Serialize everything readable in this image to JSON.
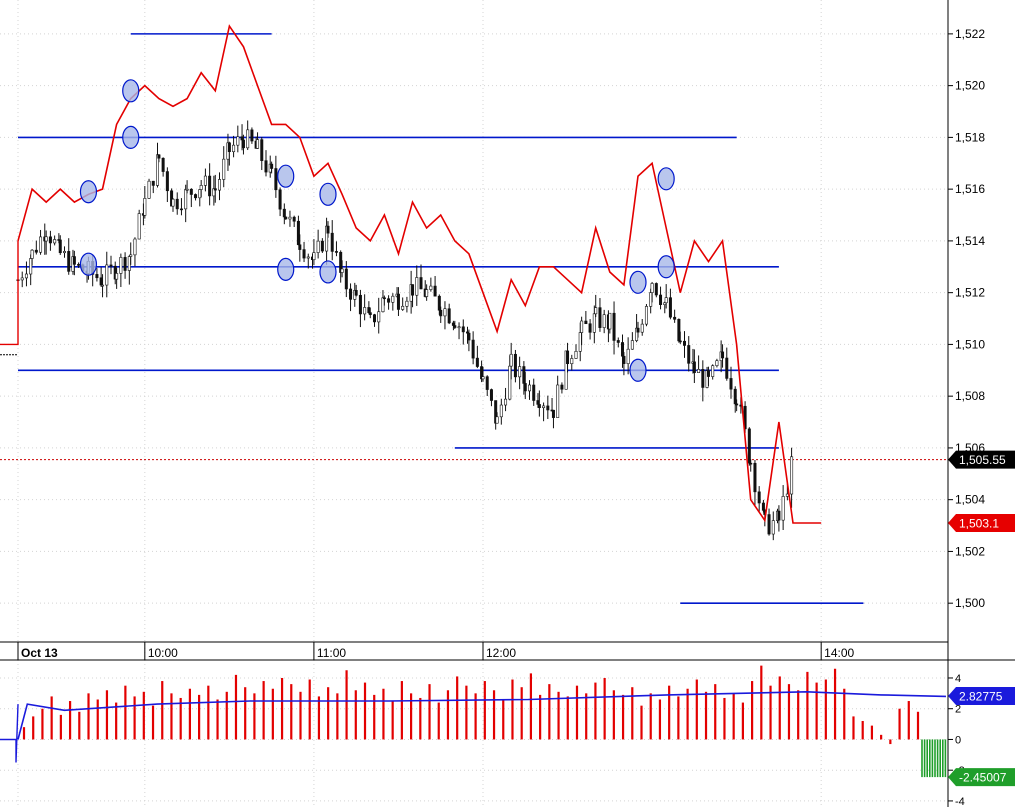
{
  "chart_data": [
    {
      "type": "candlestick",
      "panel": "price",
      "title": "",
      "xlabel": "",
      "ylabel": "",
      "ylim": [
        1498.5,
        1523
      ],
      "y_ticks": [
        1500,
        1502,
        1504,
        1506,
        1508,
        1510,
        1512,
        1514,
        1516,
        1518,
        1520,
        1522
      ],
      "y_tick_labels": [
        "1,500",
        "1,502",
        "1,504",
        "1,506",
        "1,508",
        "1,510",
        "1,512",
        "1,514",
        "1,516",
        "1,518",
        "1,520",
        "1,522"
      ],
      "x_range": [
        "09:15",
        "14:45"
      ],
      "x_ticks": [
        {
          "time": "09:15",
          "label": "Oct 13",
          "bold": true
        },
        {
          "time": "10:00",
          "label": "10:00"
        },
        {
          "time": "11:00",
          "label": "11:00"
        },
        {
          "time": "12:00",
          "label": "12:00"
        },
        {
          "time": "14:00",
          "label": "14:00"
        }
      ],
      "grid": true,
      "candle_path": [
        [
          "09:15",
          1512.5
        ],
        [
          "09:20",
          1513.5
        ],
        [
          "09:25",
          1514.5
        ],
        [
          "09:30",
          1513.5
        ],
        [
          "09:35",
          1513.0
        ],
        [
          "09:40",
          1512.8
        ],
        [
          "09:45",
          1512.5
        ],
        [
          "09:50",
          1513.0
        ],
        [
          "09:55",
          1513.5
        ],
        [
          "10:00",
          1515.5
        ],
        [
          "10:05",
          1517.2
        ],
        [
          "10:10",
          1515.5
        ],
        [
          "10:15",
          1515.8
        ],
        [
          "10:20",
          1516.2
        ],
        [
          "10:25",
          1516.0
        ],
        [
          "10:30",
          1517.5
        ],
        [
          "10:35",
          1518.0
        ],
        [
          "10:40",
          1517.5
        ],
        [
          "10:45",
          1516.5
        ],
        [
          "10:50",
          1515.0
        ],
        [
          "10:55",
          1514.0
        ],
        [
          "11:00",
          1513.2
        ],
        [
          "11:05",
          1514.5
        ],
        [
          "11:10",
          1512.5
        ],
        [
          "11:15",
          1511.8
        ],
        [
          "11:20",
          1510.8
        ],
        [
          "11:25",
          1511.8
        ],
        [
          "11:30",
          1511.8
        ],
        [
          "11:35",
          1512.2
        ],
        [
          "11:40",
          1512.0
        ],
        [
          "11:45",
          1511.5
        ],
        [
          "11:50",
          1511.0
        ],
        [
          "11:55",
          1510.2
        ],
        [
          "12:00",
          1508.5
        ],
        [
          "12:05",
          1507.0
        ],
        [
          "12:10",
          1509.2
        ],
        [
          "12:15",
          1508.5
        ],
        [
          "12:20",
          1508.0
        ],
        [
          "12:25",
          1507.5
        ],
        [
          "12:30",
          1509.5
        ],
        [
          "12:35",
          1510.5
        ],
        [
          "12:40",
          1511.0
        ],
        [
          "12:45",
          1510.8
        ],
        [
          "12:50",
          1509.2
        ],
        [
          "12:55",
          1510.5
        ],
        [
          "13:00",
          1512.5
        ],
        [
          "13:05",
          1511.5
        ],
        [
          "13:10",
          1510.0
        ],
        [
          "13:15",
          1509.0
        ],
        [
          "13:20",
          1508.5
        ],
        [
          "13:25",
          1509.5
        ],
        [
          "13:30",
          1508.0
        ],
        [
          "13:35",
          1505.5
        ],
        [
          "13:40",
          1503.0
        ],
        [
          "13:45",
          1503.2
        ],
        [
          "13:50",
          1505.5
        ]
      ],
      "red_line": [
        [
          "09:15",
          1514.0
        ],
        [
          "09:20",
          1516.0
        ],
        [
          "09:25",
          1515.5
        ],
        [
          "09:30",
          1516.0
        ],
        [
          "09:35",
          1515.5
        ],
        [
          "09:40",
          1515.8
        ],
        [
          "09:45",
          1516.0
        ],
        [
          "09:50",
          1518.5
        ],
        [
          "09:55",
          1519.5
        ],
        [
          "10:00",
          1520.0
        ],
        [
          "10:05",
          1519.5
        ],
        [
          "10:10",
          1519.2
        ],
        [
          "10:15",
          1519.5
        ],
        [
          "10:20",
          1520.5
        ],
        [
          "10:25",
          1519.8
        ],
        [
          "10:30",
          1522.3
        ],
        [
          "10:35",
          1521.5
        ],
        [
          "10:40",
          1520.0
        ],
        [
          "10:45",
          1518.5
        ],
        [
          "10:50",
          1518.5
        ],
        [
          "10:55",
          1518.0
        ],
        [
          "11:00",
          1516.5
        ],
        [
          "11:05",
          1517.0
        ],
        [
          "11:10",
          1515.8
        ],
        [
          "11:15",
          1514.5
        ],
        [
          "11:20",
          1514.0
        ],
        [
          "11:25",
          1515.0
        ],
        [
          "11:30",
          1513.5
        ],
        [
          "11:35",
          1515.5
        ],
        [
          "11:40",
          1514.5
        ],
        [
          "11:45",
          1515.0
        ],
        [
          "11:50",
          1514.0
        ],
        [
          "11:55",
          1513.5
        ],
        [
          "12:00",
          1512.0
        ],
        [
          "12:05",
          1510.5
        ],
        [
          "12:10",
          1512.5
        ],
        [
          "12:15",
          1511.5
        ],
        [
          "12:20",
          1513.0
        ],
        [
          "12:25",
          1513.0
        ],
        [
          "12:30",
          1512.5
        ],
        [
          "12:35",
          1512.0
        ],
        [
          "12:40",
          1514.5
        ],
        [
          "12:45",
          1512.8
        ],
        [
          "12:50",
          1512.3
        ],
        [
          "12:55",
          1516.5
        ],
        [
          "13:00",
          1517.0
        ],
        [
          "13:05",
          1514.5
        ],
        [
          "13:10",
          1512.0
        ],
        [
          "13:15",
          1514.0
        ],
        [
          "13:20",
          1513.2
        ],
        [
          "13:25",
          1514.0
        ],
        [
          "13:30",
          1510.0
        ],
        [
          "13:35",
          1504.0
        ],
        [
          "13:40",
          1503.2
        ],
        [
          "13:45",
          1507.0
        ],
        [
          "13:50",
          1503.1
        ],
        [
          "14:00",
          1503.1
        ]
      ],
      "horizontal_levels": [
        {
          "y": 1522.0,
          "from": "09:55",
          "to": "10:45"
        },
        {
          "y": 1518.0,
          "from": "09:15",
          "to": "13:30"
        },
        {
          "y": 1513.0,
          "from": "09:15",
          "to": "13:45"
        },
        {
          "y": 1509.0,
          "from": "09:15",
          "to": "13:45"
        },
        {
          "y": 1506.0,
          "from": "11:50",
          "to": "13:45"
        },
        {
          "y": 1500.0,
          "from": "13:10",
          "to": "14:15"
        }
      ],
      "circle_markers": [
        {
          "time": "09:40",
          "y": 1515.9
        },
        {
          "time": "09:40",
          "y": 1513.1
        },
        {
          "time": "09:55",
          "y": 1519.8
        },
        {
          "time": "09:55",
          "y": 1518.0
        },
        {
          "time": "10:50",
          "y": 1516.5
        },
        {
          "time": "10:50",
          "y": 1512.9
        },
        {
          "time": "11:05",
          "y": 1515.8
        },
        {
          "time": "11:05",
          "y": 1512.8
        },
        {
          "time": "12:55",
          "y": 1512.4
        },
        {
          "time": "12:55",
          "y": 1509.0
        },
        {
          "time": "13:05",
          "y": 1516.4
        },
        {
          "time": "13:05",
          "y": 1513.0
        }
      ],
      "reference_line": {
        "value": 1505.55,
        "style": "dashed",
        "color": "#cc0000"
      },
      "price_labels": [
        {
          "text": "1,505.55",
          "value": 1505.55,
          "bg": "#000000",
          "fg": "#ffffff"
        },
        {
          "text": "1,503.1",
          "value": 1503.1,
          "bg": "#e60000",
          "fg": "#ffffff"
        }
      ],
      "colors": {
        "candles": "#111111",
        "red_line": "#e30000",
        "levels": "#0018cc",
        "marker_fill": "#a8b8e8",
        "grid": "#d4d4d4"
      }
    },
    {
      "type": "bar",
      "panel": "oscillator",
      "title": "",
      "ylim": [
        -4.2,
        5.3
      ],
      "y_ticks": [
        -4,
        -2,
        0,
        2,
        4
      ],
      "y_tick_labels": [
        "-4",
        "-2",
        "0",
        "2",
        "4"
      ],
      "bar_heights_estimate": "positive red bars mostly between 1 and 4, dropping to about 0 near 13:35",
      "bar_values": [
        0.8,
        1.5,
        2.0,
        2.8,
        1.6,
        2.5,
        1.8,
        3.0,
        2.6,
        3.2,
        2.4,
        3.5,
        2.8,
        3.1,
        2.2,
        3.8,
        3.0,
        2.7,
        3.3,
        2.9,
        3.5,
        2.6,
        3.1,
        4.2,
        3.4,
        3.0,
        3.8,
        3.3,
        4.0,
        3.6,
        3.1,
        3.9,
        2.8,
        3.4,
        3.0,
        4.5,
        3.2,
        3.7,
        2.9,
        3.3,
        2.5,
        3.8,
        3.0,
        2.7,
        3.6,
        2.4,
        3.2,
        4.1,
        3.5,
        3.0,
        3.8,
        3.2,
        2.6,
        3.9,
        3.4,
        4.3,
        2.9,
        3.6,
        3.1,
        2.8,
        3.5,
        3.0,
        3.7,
        4.0,
        3.2,
        2.9,
        3.4,
        2.2,
        3.0,
        2.6,
        3.5,
        2.8,
        3.3,
        3.9,
        3.1,
        3.6,
        2.7,
        3.0,
        2.4,
        3.8,
        4.8,
        3.5,
        4.1,
        3.6,
        3.2,
        4.4,
        3.7,
        3.9,
        4.6,
        3.3,
        1.5,
        1.2,
        0.9,
        0.3,
        -0.3,
        2.0,
        2.5,
        1.8
      ],
      "signal_line_points": [
        [
          0,
          0.0
        ],
        [
          0.01,
          2.3
        ],
        [
          0.05,
          1.9
        ],
        [
          0.15,
          2.3
        ],
        [
          0.25,
          2.5
        ],
        [
          0.4,
          2.5
        ],
        [
          0.55,
          2.6
        ],
        [
          0.7,
          2.9
        ],
        [
          0.85,
          3.1
        ],
        [
          0.93,
          2.9
        ],
        [
          1.0,
          2.8
        ]
      ],
      "price_labels": [
        {
          "text": "2.82775",
          "value": 2.82775,
          "bg": "#1a1adc",
          "fg": "#ffffff"
        },
        {
          "text": "-2.45007",
          "value": -2.45007,
          "bg": "#1f9e2a",
          "fg": "#ffffff"
        }
      ],
      "green_bars": [
        -2.45,
        -2.45,
        -2.45,
        -2.45,
        -2.45,
        -2.45,
        -2.45,
        -2.45,
        -2.45,
        -2.45
      ],
      "colors": {
        "bars": "#e30000",
        "signal": "#1a1adc",
        "green_bars": "#1f9e2a"
      }
    }
  ]
}
